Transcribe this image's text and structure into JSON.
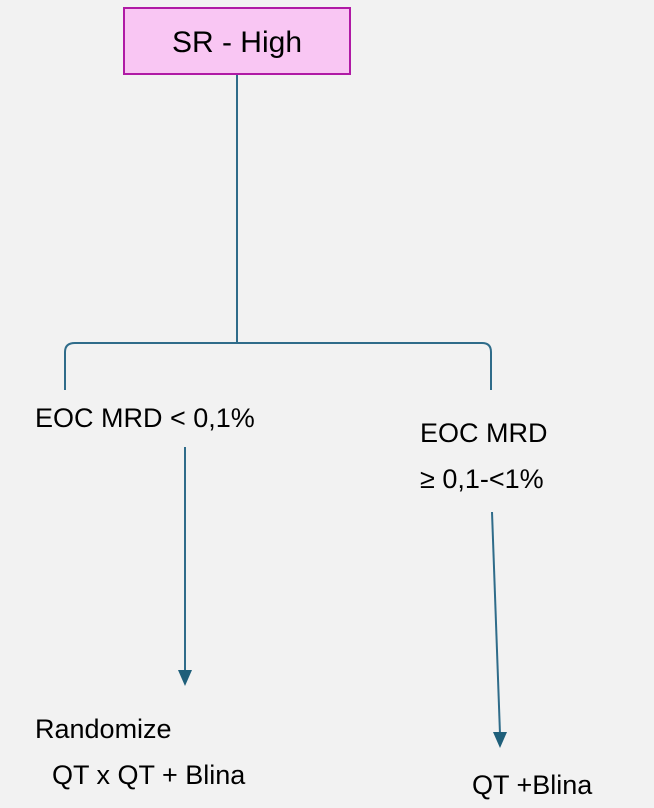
{
  "nodes": [
    {
      "label": "SR - High"
    },
    {
      "label": "EOC MRD < 0,1%"
    },
    {
      "lines": [
        "EOC MRD",
        "≥ 0,1-<1%"
      ]
    },
    {
      "lines": [
        "Randomize",
        "QT x QT + Blina"
      ]
    },
    {
      "label": "QT +Blina"
    }
  ]
}
